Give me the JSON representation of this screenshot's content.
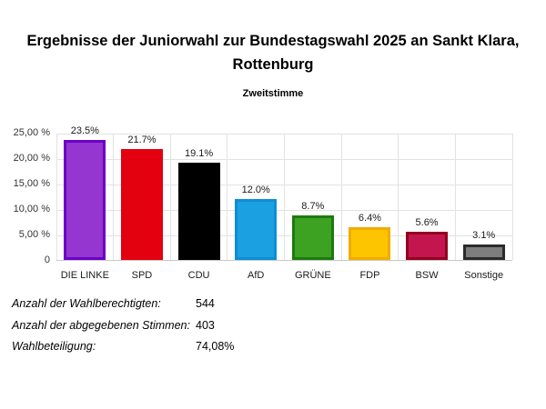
{
  "title_lines": [
    "Ergebnisse der Juniorwahl zur Bundestagswahl 2025 an Sankt Klara,",
    "Rottenburg"
  ],
  "subtitle": "Zweitstimme",
  "chart_data": {
    "type": "bar",
    "title": "Zweitstimme",
    "categories": [
      "DIE LINKE",
      "SPD",
      "CDU",
      "AfD",
      "GRÜNE",
      "FDP",
      "BSW",
      "Sonstige"
    ],
    "values": [
      23.5,
      21.7,
      19.1,
      12.0,
      8.7,
      6.4,
      5.6,
      3.1
    ],
    "value_labels": [
      "23.5%",
      "21.7%",
      "19.1%",
      "12.0%",
      "8.7%",
      "6.4%",
      "5.6%",
      "3.1%"
    ],
    "bar_fill_colors": [
      "#9436cf",
      "#e3000f",
      "#000000",
      "#1ba0e2",
      "#3da221",
      "#fdc500",
      "#c4164e",
      "#7d7d7d"
    ],
    "bar_border_colors": [
      "#6d00c8",
      "#e3000f",
      "#000000",
      "#0d8ed6",
      "#1c7a10",
      "#f0ad00",
      "#92001f",
      "#2b2b2b"
    ],
    "xlabel": "",
    "ylabel": "",
    "ylim": [
      0,
      25
    ],
    "yticks": [
      {
        "value": 25,
        "label": "25,00 %"
      },
      {
        "value": 20,
        "label": "20,00 %"
      },
      {
        "value": 15,
        "label": "15,00 %"
      },
      {
        "value": 10,
        "label": "10,00 %"
      },
      {
        "value": 5,
        "label": "5,00 %"
      },
      {
        "value": 0,
        "label": "0"
      }
    ],
    "grid": true,
    "legend": false
  },
  "stats": {
    "rows": [
      {
        "label": "Anzahl der Wahlberechtigten:",
        "value": "544"
      },
      {
        "label": "Anzahl der abgegebenen Stimmen:",
        "value": "403"
      },
      {
        "label": "Wahlbeteiligung:",
        "value": "74,08%"
      }
    ]
  }
}
